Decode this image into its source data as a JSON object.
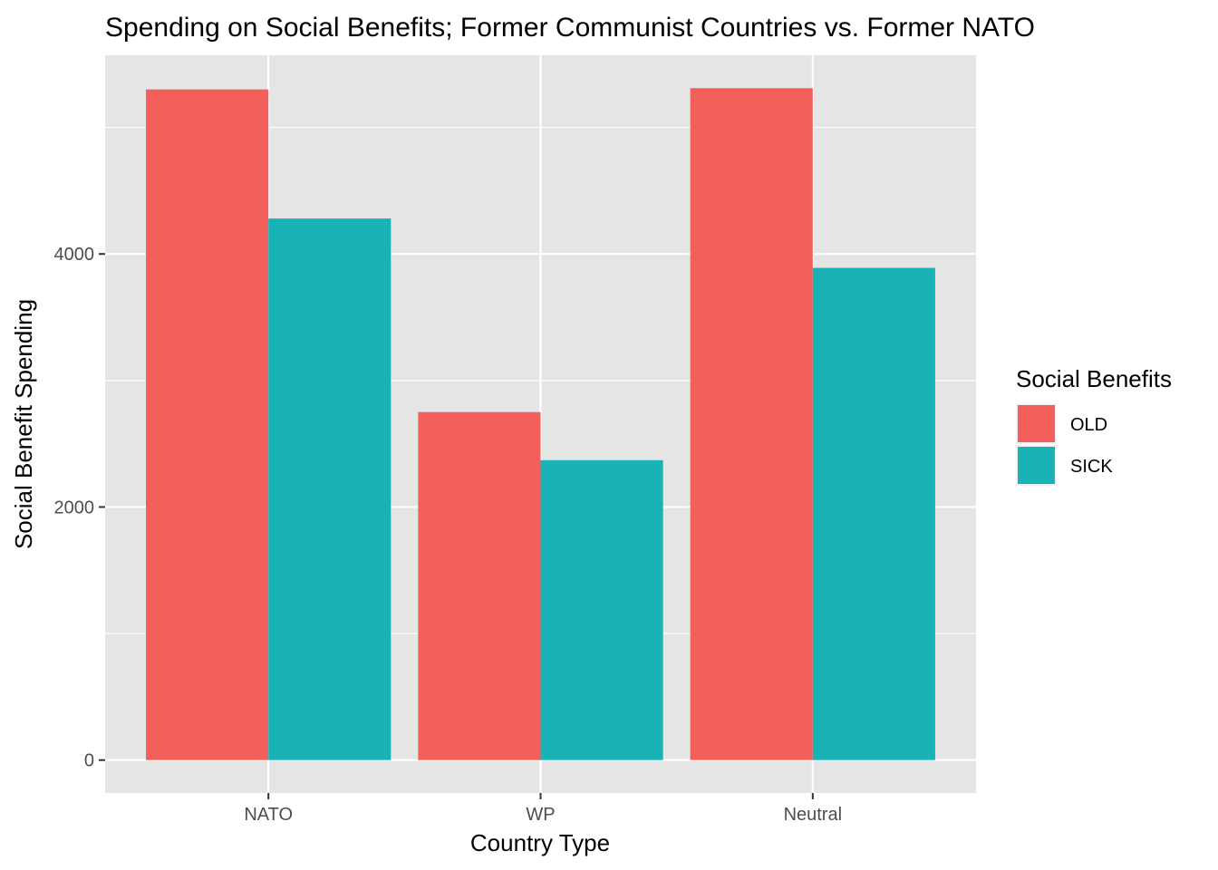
{
  "chart_data": {
    "type": "bar",
    "title": "Spending on Social Benefits; Former Communist Countries vs. Former NATO",
    "xlabel": "Country Type",
    "ylabel": "Social Benefit Spending",
    "categories": [
      "NATO",
      "WP",
      "Neutral"
    ],
    "series": [
      {
        "name": "OLD",
        "values": [
          5300,
          2750,
          5310
        ],
        "color": "#F35F5A"
      },
      {
        "name": "SICK",
        "values": [
          4280,
          2370,
          3890
        ],
        "color": "#19B3B7"
      }
    ],
    "ylim": [
      -260,
      5570
    ],
    "yticks": [
      0,
      2000,
      4000
    ],
    "legend": {
      "title": "Social Benefits",
      "placement": "right"
    },
    "grid": true,
    "panel_color": "#E5E5E5",
    "grid_color": "#FFFFFF"
  }
}
